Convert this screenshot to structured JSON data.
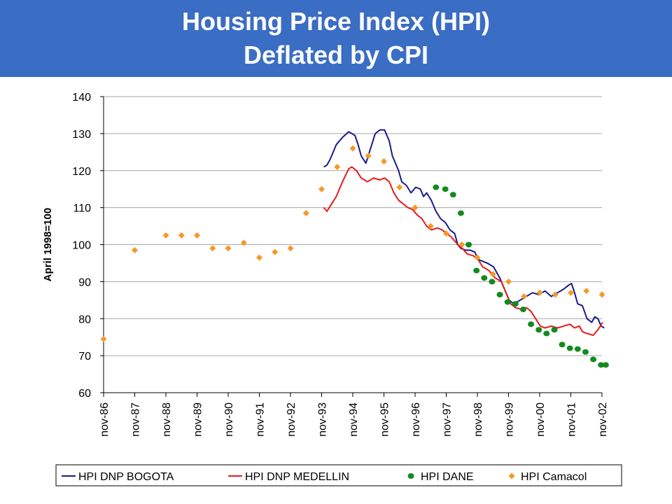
{
  "title_line1": "Housing Price Index (HPI)",
  "title_line2": "Deflated by CPI",
  "colors": {
    "banner": "#3a6dc4",
    "bogota": "#1a1a8c",
    "medellin": "#e8191e",
    "dane": "#138a1e",
    "camacol": "#f39a28"
  },
  "chart_data": {
    "type": "line",
    "ylabel": "April 1998=100",
    "ylim": [
      60,
      140
    ],
    "yticks": [
      60,
      70,
      80,
      90,
      100,
      110,
      120,
      130,
      140
    ],
    "xlim": [
      1986.83,
      2002.83
    ],
    "xtick_labels": [
      "nov-86",
      "nov-87",
      "nov-88",
      "nov-89",
      "nov-90",
      "nov-91",
      "nov-92",
      "nov-93",
      "nov-94",
      "nov-95",
      "nov-96",
      "nov-97",
      "nov-98",
      "nov-99",
      "nov-00",
      "nov-01",
      "nov-02"
    ],
    "grid": "horizontal",
    "legend_position": "bottom",
    "series": [
      {
        "name": "HPI DNP BOGOTA",
        "style": "line",
        "points": [
          [
            1993.9,
            121
          ],
          [
            1994.0,
            121.5
          ],
          [
            1994.1,
            123
          ],
          [
            1994.3,
            127
          ],
          [
            1994.5,
            129
          ],
          [
            1994.7,
            130.5
          ],
          [
            1994.9,
            129.5
          ],
          [
            1995.0,
            127
          ],
          [
            1995.1,
            124
          ],
          [
            1995.25,
            122
          ],
          [
            1995.4,
            126
          ],
          [
            1995.55,
            130
          ],
          [
            1995.7,
            131
          ],
          [
            1995.85,
            131
          ],
          [
            1996.0,
            128
          ],
          [
            1996.1,
            124
          ],
          [
            1996.3,
            120
          ],
          [
            1996.4,
            117
          ],
          [
            1996.55,
            116
          ],
          [
            1996.7,
            114
          ],
          [
            1996.85,
            115.5
          ],
          [
            1997.0,
            115
          ],
          [
            1997.1,
            113
          ],
          [
            1997.2,
            114
          ],
          [
            1997.35,
            112
          ],
          [
            1997.5,
            109
          ],
          [
            1997.65,
            107
          ],
          [
            1997.8,
            106
          ],
          [
            1997.95,
            104
          ],
          [
            1998.1,
            103
          ],
          [
            1998.2,
            100
          ],
          [
            1998.3,
            99
          ],
          [
            1998.45,
            98.5
          ],
          [
            1998.6,
            98.5
          ],
          [
            1998.75,
            98
          ],
          [
            1998.85,
            96
          ],
          [
            1999.0,
            95.5
          ],
          [
            1999.15,
            95
          ],
          [
            1999.35,
            94
          ],
          [
            1999.55,
            91
          ],
          [
            1999.7,
            88
          ],
          [
            1999.85,
            85
          ],
          [
            2000.0,
            84
          ],
          [
            2000.2,
            85
          ],
          [
            2000.4,
            86
          ],
          [
            2000.6,
            87
          ],
          [
            2000.8,
            86.5
          ],
          [
            2001.0,
            87.5
          ],
          [
            2001.2,
            86
          ],
          [
            2001.4,
            87
          ],
          [
            2001.6,
            88
          ],
          [
            2001.75,
            89
          ],
          [
            2001.85,
            89.5
          ],
          [
            2001.95,
            87
          ],
          [
            2002.05,
            84
          ],
          [
            2002.2,
            83.5
          ],
          [
            2002.35,
            80
          ],
          [
            2002.5,
            79
          ],
          [
            2002.6,
            80.5
          ],
          [
            2002.7,
            80
          ],
          [
            2002.8,
            78
          ],
          [
            2002.9,
            77.5
          ]
        ]
      },
      {
        "name": "HPI DNP MEDELLIN",
        "style": "line",
        "points": [
          [
            1993.9,
            110
          ],
          [
            1994.0,
            109
          ],
          [
            1994.15,
            111
          ],
          [
            1994.3,
            113
          ],
          [
            1994.5,
            117
          ],
          [
            1994.7,
            120.5
          ],
          [
            1994.8,
            121
          ],
          [
            1994.95,
            120
          ],
          [
            1995.1,
            118
          ],
          [
            1995.3,
            117
          ],
          [
            1995.5,
            118
          ],
          [
            1995.7,
            117.5
          ],
          [
            1995.85,
            118
          ],
          [
            1996.0,
            117
          ],
          [
            1996.15,
            114
          ],
          [
            1996.3,
            112
          ],
          [
            1996.45,
            111
          ],
          [
            1996.6,
            110
          ],
          [
            1996.75,
            109.5
          ],
          [
            1996.9,
            108
          ],
          [
            1997.05,
            107
          ],
          [
            1997.2,
            105
          ],
          [
            1997.35,
            104
          ],
          [
            1997.55,
            104.5
          ],
          [
            1997.7,
            104
          ],
          [
            1997.85,
            103
          ],
          [
            1998.0,
            102
          ],
          [
            1998.1,
            101
          ],
          [
            1998.2,
            100
          ],
          [
            1998.35,
            99
          ],
          [
            1998.5,
            97.5
          ],
          [
            1998.7,
            97
          ],
          [
            1998.85,
            96
          ],
          [
            1999.0,
            94
          ],
          [
            1999.2,
            93
          ],
          [
            1999.4,
            91
          ],
          [
            1999.6,
            90
          ],
          [
            1999.75,
            87
          ],
          [
            1999.9,
            84
          ],
          [
            2000.05,
            83
          ],
          [
            2000.25,
            82.5
          ],
          [
            2000.4,
            83
          ],
          [
            2000.55,
            82
          ],
          [
            2000.7,
            80
          ],
          [
            2000.85,
            78
          ],
          [
            2001.0,
            77.5
          ],
          [
            2001.2,
            78
          ],
          [
            2001.4,
            77.5
          ],
          [
            2001.6,
            78
          ],
          [
            2001.8,
            78.5
          ],
          [
            2001.95,
            77.5
          ],
          [
            2002.1,
            78
          ],
          [
            2002.2,
            76.5
          ],
          [
            2002.35,
            76
          ],
          [
            2002.55,
            75.5
          ],
          [
            2002.7,
            77
          ],
          [
            2002.85,
            79
          ]
        ]
      },
      {
        "name": "HPI DANE",
        "style": "dots",
        "points": [
          [
            1997.5,
            115.5
          ],
          [
            1997.8,
            115
          ],
          [
            1998.05,
            113.5
          ],
          [
            1998.3,
            108.5
          ],
          [
            1998.55,
            100
          ],
          [
            1998.8,
            93
          ],
          [
            1999.05,
            91
          ],
          [
            1999.3,
            90
          ],
          [
            1999.55,
            86.5
          ],
          [
            1999.8,
            84.5
          ],
          [
            2000.05,
            84
          ],
          [
            2000.3,
            82.5
          ],
          [
            2000.55,
            78.5
          ],
          [
            2000.8,
            77
          ],
          [
            2001.05,
            76
          ],
          [
            2001.3,
            77
          ],
          [
            2001.55,
            73
          ],
          [
            2001.8,
            72
          ],
          [
            2002.05,
            71.8
          ],
          [
            2002.3,
            71
          ],
          [
            2002.55,
            69
          ],
          [
            2002.8,
            67.5
          ],
          [
            2002.95,
            67.5
          ]
        ]
      },
      {
        "name": "HPI Camacol",
        "style": "diamonds",
        "points": [
          [
            1986.83,
            74.5
          ],
          [
            1987.83,
            98.5
          ],
          [
            1988.83,
            102.5
          ],
          [
            1989.33,
            102.5
          ],
          [
            1989.83,
            102.5
          ],
          [
            1990.33,
            99
          ],
          [
            1990.83,
            99
          ],
          [
            1991.33,
            100.5
          ],
          [
            1991.83,
            96.5
          ],
          [
            1992.33,
            98
          ],
          [
            1992.83,
            99
          ],
          [
            1993.33,
            108.5
          ],
          [
            1993.83,
            115
          ],
          [
            1994.33,
            121
          ],
          [
            1994.83,
            126
          ],
          [
            1995.33,
            124
          ],
          [
            1995.83,
            122.5
          ],
          [
            1996.33,
            115.5
          ],
          [
            1996.83,
            110
          ],
          [
            1997.33,
            105
          ],
          [
            1997.83,
            103
          ],
          [
            1998.33,
            100
          ],
          [
            1998.83,
            96.5
          ],
          [
            1999.33,
            92
          ],
          [
            1999.83,
            90
          ],
          [
            2000.33,
            86
          ],
          [
            2000.83,
            87
          ],
          [
            2001.33,
            86.5
          ],
          [
            2001.83,
            87
          ],
          [
            2002.33,
            87.5
          ],
          [
            2002.83,
            86.5
          ]
        ]
      }
    ]
  }
}
